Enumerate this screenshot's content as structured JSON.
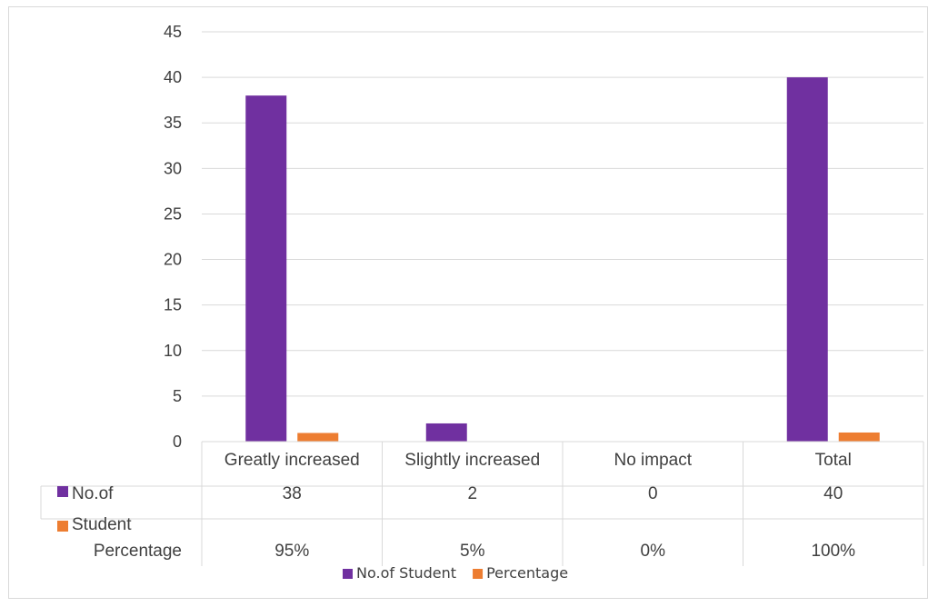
{
  "chart_data": {
    "type": "bar",
    "categories": [
      "Greatly increased",
      "Slightly increased",
      "No impact",
      "Total"
    ],
    "series": [
      {
        "name": "No.of Student",
        "values": [
          38,
          2,
          0,
          40
        ],
        "color": "#7030a0"
      },
      {
        "name": "Percentage",
        "values": [
          0.95,
          0.05,
          0,
          1
        ],
        "color": "#ed7d31"
      }
    ],
    "ylim": [
      0,
      45
    ],
    "yticks": [
      "0",
      "5",
      "10",
      "15",
      "20",
      "25",
      "30",
      "35",
      "40",
      "45"
    ],
    "grid": true,
    "data_table": {
      "row_labels": [
        "No.of",
        "Student",
        "Percentage"
      ],
      "rows": [
        [
          "38",
          "2",
          "0",
          "40"
        ],
        [
          "95%",
          "5%",
          "0%",
          "100%"
        ]
      ]
    },
    "legend": {
      "position": "bottom",
      "entries": [
        "No.of Student",
        "Percentage"
      ]
    }
  }
}
